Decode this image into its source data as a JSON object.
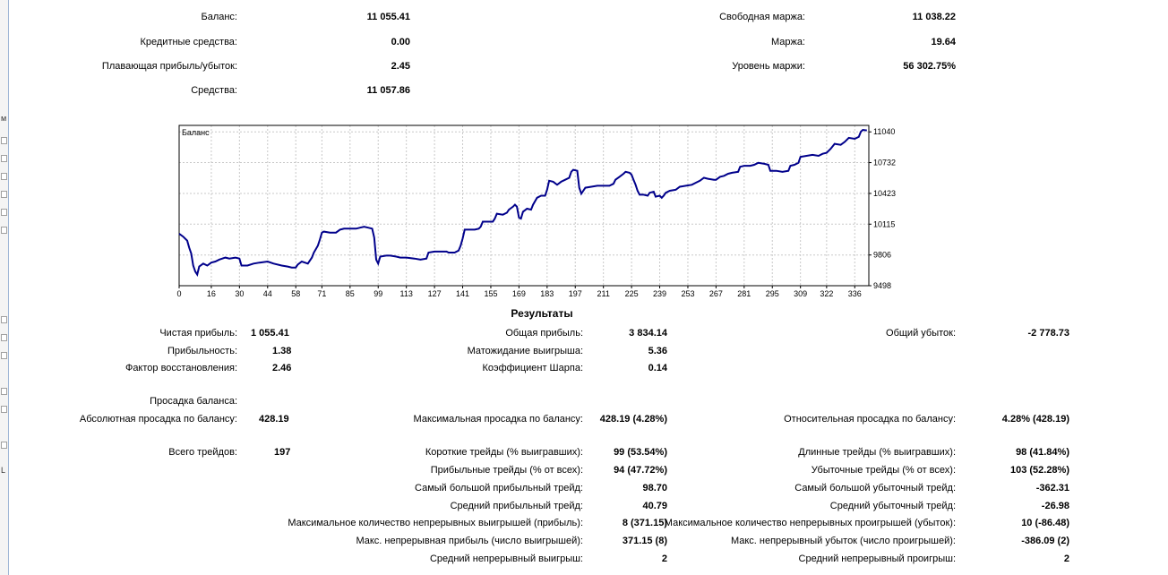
{
  "account": {
    "balance_label": "Баланс:",
    "balance": "11 055.41",
    "credit_label": "Кредитные средства:",
    "credit": "0.00",
    "floating_label": "Плавающая прибыль/убыток:",
    "floating": "2.45",
    "equity_label": "Средства:",
    "equity": "11 057.86",
    "free_margin_label": "Свободная маржа:",
    "free_margin": "11 038.22",
    "margin_label": "Маржа:",
    "margin": "19.64",
    "margin_level_label": "Уровень маржи:",
    "margin_level": "56 302.75%"
  },
  "chart_data": {
    "type": "line",
    "title": "Баланс",
    "x_ticks": [
      0,
      16,
      30,
      44,
      58,
      71,
      85,
      99,
      113,
      127,
      141,
      155,
      169,
      183,
      197,
      211,
      225,
      239,
      253,
      267,
      281,
      295,
      309,
      322,
      336
    ],
    "y_ticks": [
      9498,
      9806,
      10115,
      10423,
      10732,
      11040
    ],
    "xlim": [
      0,
      343
    ],
    "ylim": [
      9498,
      11105
    ],
    "series": [
      {
        "color": "#00008b",
        "points": [
          [
            0,
            10020
          ],
          [
            2,
            9990
          ],
          [
            4,
            9950
          ],
          [
            5,
            9880
          ],
          [
            6,
            9820
          ],
          [
            7,
            9700
          ],
          [
            8,
            9640
          ],
          [
            9,
            9610
          ],
          [
            10,
            9690
          ],
          [
            12,
            9720
          ],
          [
            14,
            9700
          ],
          [
            16,
            9730
          ],
          [
            18,
            9740
          ],
          [
            20,
            9760
          ],
          [
            23,
            9780
          ],
          [
            25,
            9770
          ],
          [
            28,
            9780
          ],
          [
            30,
            9770
          ],
          [
            31,
            9700
          ],
          [
            34,
            9700
          ],
          [
            37,
            9720
          ],
          [
            40,
            9730
          ],
          [
            44,
            9740
          ],
          [
            47,
            9720
          ],
          [
            51,
            9700
          ],
          [
            54,
            9690
          ],
          [
            56,
            9680
          ],
          [
            58,
            9680
          ],
          [
            59,
            9710
          ],
          [
            61,
            9740
          ],
          [
            64,
            9720
          ],
          [
            66,
            9780
          ],
          [
            67,
            9830
          ],
          [
            69,
            9900
          ],
          [
            70,
            9960
          ],
          [
            71,
            10030
          ],
          [
            72,
            10040
          ],
          [
            75,
            10030
          ],
          [
            78,
            10030
          ],
          [
            80,
            10060
          ],
          [
            82,
            10070
          ],
          [
            85,
            10070
          ],
          [
            88,
            10070
          ],
          [
            90,
            10080
          ],
          [
            92,
            10090
          ],
          [
            94,
            10080
          ],
          [
            96,
            10070
          ],
          [
            97,
            9980
          ],
          [
            98,
            9760
          ],
          [
            99,
            9720
          ],
          [
            100,
            9790
          ],
          [
            103,
            9800
          ],
          [
            105,
            9800
          ],
          [
            108,
            9790
          ],
          [
            110,
            9780
          ],
          [
            113,
            9780
          ],
          [
            117,
            9770
          ],
          [
            120,
            9760
          ],
          [
            123,
            9770
          ],
          [
            124,
            9830
          ],
          [
            127,
            9840
          ],
          [
            130,
            9840
          ],
          [
            133,
            9840
          ],
          [
            134,
            9830
          ],
          [
            137,
            9830
          ],
          [
            139,
            9850
          ],
          [
            140,
            9900
          ],
          [
            141,
            9970
          ],
          [
            142,
            10060
          ],
          [
            145,
            10060
          ],
          [
            147,
            10060
          ],
          [
            149,
            10070
          ],
          [
            150,
            10090
          ],
          [
            151,
            10140
          ],
          [
            154,
            10140
          ],
          [
            156,
            10140
          ],
          [
            157,
            10170
          ],
          [
            158,
            10220
          ],
          [
            161,
            10210
          ],
          [
            163,
            10230
          ],
          [
            164,
            10260
          ],
          [
            166,
            10290
          ],
          [
            167,
            10310
          ],
          [
            168,
            10290
          ],
          [
            169,
            10180
          ],
          [
            170,
            10170
          ],
          [
            171,
            10240
          ],
          [
            173,
            10270
          ],
          [
            175,
            10260
          ],
          [
            176,
            10310
          ],
          [
            178,
            10380
          ],
          [
            180,
            10400
          ],
          [
            182,
            10400
          ],
          [
            183,
            10460
          ],
          [
            184,
            10550
          ],
          [
            186,
            10540
          ],
          [
            188,
            10510
          ],
          [
            190,
            10540
          ],
          [
            192,
            10560
          ],
          [
            194,
            10580
          ],
          [
            195,
            10640
          ],
          [
            196,
            10660
          ],
          [
            198,
            10650
          ],
          [
            199,
            10480
          ],
          [
            200,
            10420
          ],
          [
            202,
            10480
          ],
          [
            205,
            10490
          ],
          [
            208,
            10500
          ],
          [
            211,
            10500
          ],
          [
            214,
            10500
          ],
          [
            216,
            10520
          ],
          [
            217,
            10560
          ],
          [
            219,
            10590
          ],
          [
            221,
            10620
          ],
          [
            222,
            10640
          ],
          [
            224,
            10630
          ],
          [
            225,
            10610
          ],
          [
            226,
            10560
          ],
          [
            227,
            10510
          ],
          [
            228,
            10450
          ],
          [
            229,
            10410
          ],
          [
            231,
            10410
          ],
          [
            233,
            10400
          ],
          [
            234,
            10430
          ],
          [
            236,
            10440
          ],
          [
            237,
            10390
          ],
          [
            239,
            10400
          ],
          [
            240,
            10380
          ],
          [
            241,
            10400
          ],
          [
            242,
            10430
          ],
          [
            244,
            10450
          ],
          [
            247,
            10460
          ],
          [
            249,
            10490
          ],
          [
            252,
            10500
          ],
          [
            255,
            10510
          ],
          [
            257,
            10530
          ],
          [
            259,
            10550
          ],
          [
            261,
            10580
          ],
          [
            263,
            10570
          ],
          [
            266,
            10560
          ],
          [
            267,
            10560
          ],
          [
            269,
            10590
          ],
          [
            271,
            10600
          ],
          [
            273,
            10620
          ],
          [
            275,
            10630
          ],
          [
            278,
            10640
          ],
          [
            279,
            10690
          ],
          [
            281,
            10700
          ],
          [
            284,
            10700
          ],
          [
            286,
            10710
          ],
          [
            288,
            10730
          ],
          [
            291,
            10720
          ],
          [
            293,
            10710
          ],
          [
            294,
            10650
          ],
          [
            297,
            10650
          ],
          [
            300,
            10640
          ],
          [
            303,
            10650
          ],
          [
            304,
            10700
          ],
          [
            306,
            10710
          ],
          [
            308,
            10730
          ],
          [
            309,
            10790
          ],
          [
            312,
            10800
          ],
          [
            315,
            10810
          ],
          [
            318,
            10800
          ],
          [
            320,
            10820
          ],
          [
            322,
            10830
          ],
          [
            324,
            10870
          ],
          [
            326,
            10920
          ],
          [
            329,
            10910
          ],
          [
            331,
            10940
          ],
          [
            333,
            10980
          ],
          [
            336,
            10970
          ],
          [
            338,
            10990
          ],
          [
            339,
            11040
          ],
          [
            340,
            11060
          ],
          [
            342,
            11055
          ]
        ]
      }
    ]
  },
  "results": {
    "title": "Результаты",
    "net_profit_label": "Чистая прибыль:",
    "net_profit": "1 055.41",
    "profitability_label": "Прибыльность:",
    "profitability": "1.38",
    "recovery_label": "Фактор восстановления:",
    "recovery": "2.46",
    "gross_profit_label": "Общая прибыль:",
    "gross_profit": "3 834.14",
    "expected_payoff_label": "Матожидание выигрыша:",
    "expected_payoff": "5.36",
    "sharpe_label": "Коэффициент Шарпа:",
    "sharpe": "0.14",
    "gross_loss_label": "Общий убыток:",
    "gross_loss": "-2 778.73",
    "drawdown_header": "Просадка баланса:",
    "abs_dd_label": "Абсолютная просадка по балансу:",
    "abs_dd": "428.19",
    "max_dd_label": "Максимальная просадка по балансу:",
    "max_dd": "428.19 (4.28%)",
    "rel_dd_label": "Относительная просадка по балансу:",
    "rel_dd": "4.28% (428.19)",
    "total_trades_label": "Всего трейдов:",
    "total_trades": "197",
    "short_label": "Короткие трейды (% выигравших):",
    "short": "99 (53.54%)",
    "long_label": "Длинные трейды (% выигравших):",
    "long": "98 (41.84%)",
    "profit_trades_label": "Прибыльные трейды (% от всех):",
    "profit_trades": "94 (47.72%)",
    "loss_trades_label": "Убыточные трейды (% от всех):",
    "loss_trades": "103 (52.28%)",
    "largest_profit_label": "Самый большой прибыльный трейд:",
    "largest_profit": "98.70",
    "largest_loss_label": "Самый большой убыточный трейд:",
    "largest_loss": "-362.31",
    "avg_profit_label": "Средний прибыльный трейд:",
    "avg_profit": "40.79",
    "avg_loss_label": "Средний убыточный трейд:",
    "avg_loss": "-26.98",
    "max_cons_wins_label": "Максимальное количество непрерывных выигрышей (прибыль):",
    "max_cons_wins": "8 (371.15)",
    "max_cons_losses_label": "Максимальное количество непрерывных проигрышей (убыток):",
    "max_cons_losses": "10 (-86.48)",
    "max_cons_profit_label": "Макс. непрерывная прибыль (число выигрышей):",
    "max_cons_profit": "371.15 (8)",
    "max_cons_loss_label": "Макс. непрерывный убыток (число проигрышей):",
    "max_cons_loss": "-386.09 (2)",
    "avg_cons_wins_label": "Средний непрерывный выигрыш:",
    "avg_cons_wins": "2",
    "avg_cons_losses_label": "Средний непрерывный проигрыш:",
    "avg_cons_losses": "2"
  }
}
